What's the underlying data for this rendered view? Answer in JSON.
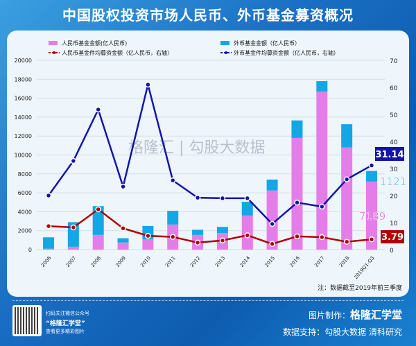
{
  "title": "中国股权投资市场人民币、外币基金募资概况",
  "note": "注：数据截至2019年前三季度",
  "watermark": "格隆汇 | 勾股大数据",
  "footer": {
    "qr_line1": "扫码关注微信公众号",
    "qr_line2": "“格隆汇学堂”",
    "qr_line3": "查看更多精彩图片",
    "made_by_label": "图片制作：",
    "made_by": "格隆汇学堂",
    "data_label": "数据支持：勾股大数据  清科研究"
  },
  "colors": {
    "rmb_bar": "#e57de8",
    "fx_bar": "#14a7e6",
    "rmb_line": "#b00000",
    "fx_line": "#1414a8"
  },
  "chart_data": {
    "type": "bar+line",
    "categories": [
      "2006",
      "2007",
      "2008",
      "2009",
      "2010",
      "2011",
      "2012",
      "2013",
      "2014",
      "2015",
      "2016",
      "2017",
      "2018",
      "2019Q1-Q3"
    ],
    "left_ylim": [
      0,
      20000
    ],
    "left_ticks": [
      0,
      2000,
      4000,
      6000,
      8000,
      10000,
      12000,
      14000,
      16000,
      18000,
      20000
    ],
    "right_ylim": [
      0,
      70
    ],
    "right_ticks": [
      0,
      10,
      20,
      30,
      40,
      50,
      60,
      70
    ],
    "grid": true,
    "legend": "top",
    "series": [
      {
        "name": "人民币基金金额(亿人民币)",
        "type": "stacked-bar",
        "axis": "left",
        "values": [
          100,
          300,
          1550,
          750,
          1100,
          2650,
          1550,
          1750,
          3600,
          6250,
          11800,
          16700,
          10800,
          7189
        ]
      },
      {
        "name": "外币基金金额（亿人民币）",
        "type": "stacked-bar",
        "axis": "left",
        "values": [
          1200,
          2600,
          3050,
          450,
          1400,
          1450,
          550,
          650,
          1450,
          1150,
          1850,
          1100,
          2450,
          1121
        ]
      },
      {
        "name": "人民币基金件均募资金额（亿人民币，右轴）",
        "type": "line",
        "axis": "right",
        "values": [
          8.7,
          8.2,
          14.9,
          7.9,
          5.1,
          4.7,
          2.6,
          3.4,
          5.3,
          2.1,
          4.9,
          4.6,
          2.9,
          3.79
        ]
      },
      {
        "name": "外币基金件均募资金额（亿人民币，右轴）",
        "type": "line",
        "axis": "right",
        "values": [
          20,
          32.8,
          51.8,
          23.3,
          61,
          25.6,
          19.2,
          19,
          19,
          9.5,
          17.4,
          15.9,
          26,
          31.14
        ]
      }
    ],
    "annotations": [
      "31.14",
      "1121",
      "7189",
      "3.79"
    ]
  }
}
